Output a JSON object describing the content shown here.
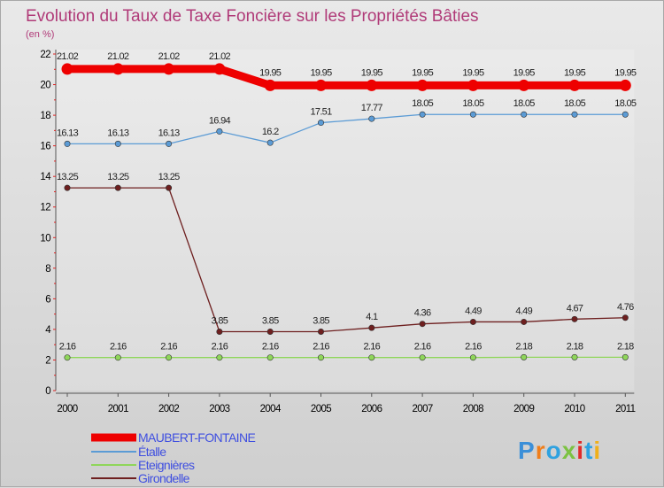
{
  "chart_data": {
    "type": "line",
    "title": "Evolution du Taux de Taxe Foncière sur les Propriétés Bâties",
    "subtitle": "(en %)",
    "xlabel": "",
    "ylabel": "",
    "x": [
      "2000",
      "2001",
      "2002",
      "2003",
      "2004",
      "2005",
      "2006",
      "2007",
      "2008",
      "2009",
      "2010",
      "2011"
    ],
    "ylim": [
      0,
      22
    ],
    "yticks": [
      "0",
      "2",
      "4",
      "6",
      "8",
      "10",
      "12",
      "14",
      "16",
      "18",
      "20",
      "22"
    ],
    "legend_position": "bottom-left",
    "series": [
      {
        "name": "MAUBERT-FONTAINE",
        "color": "#ee0000",
        "values": [
          21.02,
          21.02,
          21.02,
          21.02,
          19.95,
          19.95,
          19.95,
          19.95,
          19.95,
          19.95,
          19.95,
          19.95
        ],
        "labels": [
          "21.02",
          "21.02",
          "21.02",
          "21.02",
          "19.95",
          "19.95",
          "19.95",
          "19.95",
          "19.95",
          "19.95",
          "19.95",
          "19.95"
        ]
      },
      {
        "name": "Étalle",
        "color": "#5b9bd5",
        "values": [
          16.13,
          16.13,
          16.13,
          16.94,
          16.2,
          17.51,
          17.77,
          18.05,
          18.05,
          18.05,
          18.05,
          18.05
        ],
        "labels": [
          "16.13",
          "16.13",
          "16.13",
          "16.94",
          "16.2",
          "17.51",
          "17.77",
          "18.05",
          "18.05",
          "18.05",
          "18.05",
          "18.05"
        ]
      },
      {
        "name": "Eteignières",
        "color": "#8fd65a",
        "values": [
          2.16,
          2.16,
          2.16,
          2.16,
          2.16,
          2.16,
          2.16,
          2.16,
          2.16,
          2.18,
          2.18,
          2.18
        ],
        "labels": [
          "2.16",
          "2.16",
          "2.16",
          "2.16",
          "2.16",
          "2.16",
          "2.16",
          "2.16",
          "2.16",
          "2.18",
          "2.18",
          "2.18"
        ]
      },
      {
        "name": "Girondelle",
        "color": "#6e1f1f",
        "values": [
          13.25,
          13.25,
          13.25,
          3.85,
          3.85,
          3.85,
          4.1,
          4.36,
          4.49,
          4.49,
          4.67,
          4.76
        ],
        "labels": [
          "13.25",
          "13.25",
          "13.25",
          "3.85",
          "3.85",
          "3.85",
          "4.1",
          "4.36",
          "4.49",
          "4.49",
          "4.67",
          "4.76"
        ]
      }
    ]
  },
  "logo": {
    "text": "Proxiti",
    "colors": [
      "#3b8fd8",
      "#f07e1a",
      "#2fa2e0",
      "#7cc242",
      "#e02a2a",
      "#2fa2e0",
      "#f0b01a"
    ]
  }
}
